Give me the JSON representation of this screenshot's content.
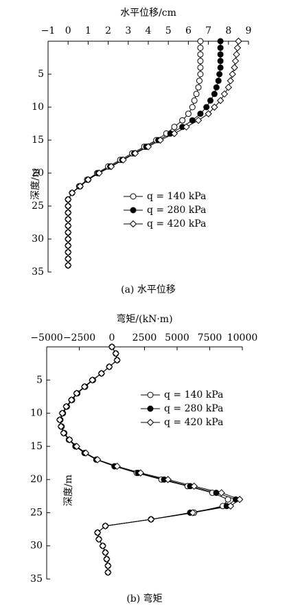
{
  "chart_data": [
    {
      "type": "line",
      "title": "水平位移/cm",
      "y_label": "深度/m",
      "caption": "(a) 水平位移",
      "y": [
        0,
        1,
        2,
        3,
        4,
        5,
        6,
        7,
        8,
        9,
        10,
        11,
        12,
        13,
        14,
        15,
        16,
        17,
        18,
        19,
        20,
        21,
        22,
        23,
        24,
        25,
        26,
        27,
        28,
        29,
        30,
        31,
        32,
        33,
        34
      ],
      "xlim": [
        -1,
        9
      ],
      "xticks": [
        {
          "value": -1,
          "label": "−1"
        },
        0,
        1,
        2,
        3,
        4,
        5,
        6,
        7,
        8,
        9
      ],
      "ylim": [
        0,
        35
      ],
      "yticks": [
        5,
        10,
        15,
        20,
        25,
        30,
        35
      ],
      "y_inverted": true,
      "legend": "center",
      "series": [
        {
          "name": "q = 140 kPa",
          "color": "#000000",
          "marker": "open-circle",
          "values": [
            6.6,
            6.6,
            6.6,
            6.6,
            6.6,
            6.6,
            6.55,
            6.5,
            6.4,
            6.3,
            6.2,
            6.0,
            5.7,
            5.3,
            4.9,
            4.4,
            3.8,
            3.2,
            2.6,
            2.0,
            1.45,
            0.95,
            0.55,
            0.2,
            0,
            0,
            0,
            0,
            0,
            0,
            0,
            0,
            0,
            0,
            0
          ]
        },
        {
          "name": "q = 280 kPa",
          "color": "#000000",
          "marker": "filled-circle",
          "values": [
            7.6,
            7.6,
            7.6,
            7.6,
            7.6,
            7.55,
            7.5,
            7.4,
            7.3,
            7.1,
            6.9,
            6.6,
            6.2,
            5.7,
            5.1,
            4.5,
            3.9,
            3.3,
            2.7,
            2.1,
            1.5,
            1.0,
            0.6,
            0.2,
            0,
            0,
            0,
            0,
            0,
            0,
            0,
            0,
            0,
            0,
            0
          ]
        },
        {
          "name": "q = 420 kPa",
          "color": "#000000",
          "marker": "open-diamond",
          "values": [
            8.5,
            8.45,
            8.4,
            8.35,
            8.3,
            8.2,
            8.1,
            8.0,
            7.8,
            7.6,
            7.3,
            7.0,
            6.5,
            5.9,
            5.3,
            4.6,
            4.0,
            3.35,
            2.75,
            2.15,
            1.55,
            1.0,
            0.6,
            0.2,
            0,
            0,
            0,
            0,
            0,
            0,
            0,
            0,
            0,
            0,
            0
          ]
        }
      ]
    },
    {
      "type": "line",
      "title": "弯矩/(kN·m)",
      "y_label": "深度/m",
      "caption": "(b) 弯矩",
      "y": [
        0,
        1,
        2,
        3,
        4,
        5,
        6,
        7,
        8,
        9,
        10,
        11,
        12,
        13,
        14,
        15,
        16,
        17,
        18,
        19,
        20,
        21,
        22,
        23,
        24,
        25,
        26,
        27,
        28,
        29,
        30,
        31,
        32,
        33,
        34
      ],
      "xlim": [
        -5000,
        10000
      ],
      "xticks": [
        {
          "value": -5000,
          "label": "−5000"
        },
        {
          "value": -2500,
          "label": "−2500"
        },
        0,
        2500,
        5000,
        7500,
        10000
      ],
      "ylim": [
        0,
        35
      ],
      "yticks": [
        5,
        10,
        15,
        20,
        25,
        30,
        35
      ],
      "y_inverted": true,
      "legend": "center",
      "series": [
        {
          "name": "q = 140 kPa",
          "color": "#000000",
          "marker": "open-circle",
          "values": [
            0,
            300,
            400,
            -200,
            -800,
            -1450,
            -2050,
            -2650,
            -3050,
            -3450,
            -3750,
            -3950,
            -3850,
            -3650,
            -3250,
            -2750,
            -2050,
            -1150,
            200,
            1900,
            3800,
            5800,
            7700,
            8900,
            8500,
            6300,
            3000,
            -500,
            -1100,
            -1000,
            -700,
            -500,
            -400,
            -300,
            -300
          ]
        },
        {
          "name": "q = 280 kPa",
          "color": "#000000",
          "marker": "filled-circle",
          "values": [
            0,
            300,
            400,
            -200,
            -800,
            -1500,
            -2100,
            -2700,
            -3100,
            -3500,
            -3800,
            -4000,
            -3900,
            -3700,
            -3300,
            -2800,
            -2100,
            -1200,
            200,
            2000,
            4000,
            6000,
            8000,
            9500,
            8800,
            6000,
            3000,
            -500,
            -1100,
            -1000,
            -700,
            -500,
            -400,
            -300,
            -300
          ]
        },
        {
          "name": "q = 420 kPa",
          "color": "#000000",
          "marker": "open-diamond",
          "values": [
            0,
            300,
            400,
            -200,
            -800,
            -1500,
            -2100,
            -2700,
            -3100,
            -3500,
            -3800,
            -4000,
            -3900,
            -3700,
            -3250,
            -2700,
            -2000,
            -1100,
            400,
            2200,
            4300,
            6300,
            8400,
            9800,
            9100,
            6200,
            3000,
            -500,
            -1100,
            -1000,
            -700,
            -500,
            -400,
            -300,
            -300
          ]
        }
      ]
    }
  ]
}
